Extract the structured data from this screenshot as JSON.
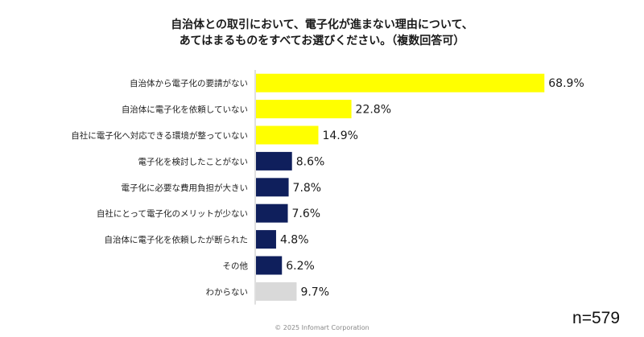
{
  "title": {
    "line1": "自治体との取引において、電子化が進まない理由について、",
    "line2": "あてはまるものをすべてお選びください。（複数回答可）"
  },
  "colors": {
    "yellow": "#FFFF00",
    "navy": "#0F1F5C",
    "gray": "#D9D9D9",
    "axis": "#BFBFBF"
  },
  "chart_data": {
    "type": "bar",
    "orientation": "horizontal",
    "title": "自治体との取引において、電子化が進まない理由について、あてはまるものをすべてお選びください。（複数回答可）",
    "xlabel": "",
    "ylabel": "",
    "xlim": [
      0,
      75
    ],
    "unit": "%",
    "grid": false,
    "categories": [
      "自治体から電子化の要請がない",
      "自治体に電子化を依頼していない",
      "自社に電子化へ対応できる環境が整っていない",
      "電子化を検討したことがない",
      "電子化に必要な費用負担が大きい",
      "自社にとって電子化のメリットが少ない",
      "自治体に電子化を依頼したが断られた",
      "その他",
      "わからない"
    ],
    "values": [
      68.9,
      22.8,
      14.9,
      8.6,
      7.8,
      7.6,
      4.8,
      6.2,
      9.7
    ],
    "value_labels": [
      "68.9%",
      "22.8%",
      "14.9%",
      "8.6%",
      "7.8%",
      "7.6%",
      "4.8%",
      "6.2%",
      "9.7%"
    ],
    "bar_colors": [
      "yellow",
      "yellow",
      "yellow",
      "navy",
      "navy",
      "navy",
      "navy",
      "navy",
      "gray"
    ]
  },
  "sample_size": "n=579",
  "copyright": "© 2025 Infomart Corporation"
}
